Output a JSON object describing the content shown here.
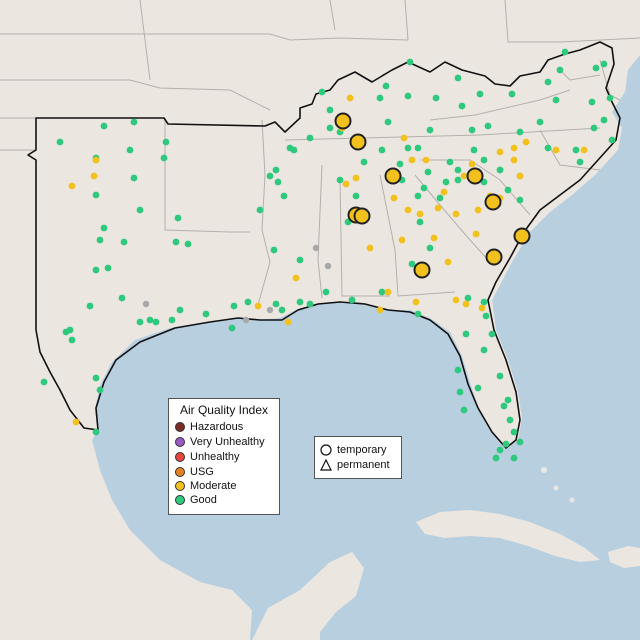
{
  "colors": {
    "water": "#b8cfe0",
    "land": "#ebe6e0",
    "land_outside": "#e3ddd6",
    "state_border": "#b4b0ab",
    "region_border": "#111111",
    "marker_outline": "#222222",
    "good": "#2ec97d",
    "moderate": "#f2c11d",
    "usg": "#e8801f",
    "unhealthy": "#e5473a",
    "very_unhealthy": "#9b59c6",
    "hazardous": "#7a2b24",
    "no_data": "#a8a8a8"
  },
  "aqi_legend": {
    "title": "Air Quality Index",
    "items": [
      {
        "label": "Hazardous",
        "color": "#7a2b24"
      },
      {
        "label": "Very Unhealthy",
        "color": "#9b59c6"
      },
      {
        "label": "Unhealthy",
        "color": "#e5473a"
      },
      {
        "label": "USG",
        "color": "#e8801f"
      },
      {
        "label": "Moderate",
        "color": "#f2c11d"
      },
      {
        "label": "Good",
        "color": "#2ec97d"
      }
    ]
  },
  "monitor_legend": {
    "items": [
      {
        "label": "temporary",
        "icon": "circle-icon"
      },
      {
        "label": "permanent",
        "icon": "triangle-icon"
      }
    ]
  }
}
